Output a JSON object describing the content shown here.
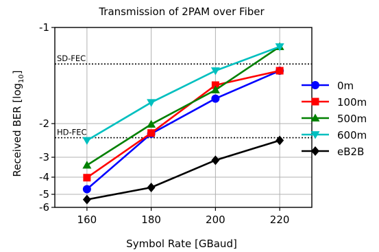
{
  "chart_data": {
    "type": "line",
    "title": "Transmission of 2PAM over Fiber",
    "xlabel": "Symbol Rate [GBaud]",
    "ylabel_main": "Received BER [log",
    "ylabel_sub": "10",
    "ylabel_close": "]",
    "x": [
      160,
      180,
      200,
      220
    ],
    "x_ticks": [
      160,
      180,
      200,
      220
    ],
    "x_tick_labels": [
      "160",
      "180",
      "200",
      "220"
    ],
    "xlim": [
      150,
      230
    ],
    "ylim": [
      -6,
      -1
    ],
    "y_ticks": [
      -1,
      -2,
      -3,
      -4,
      -5,
      -6
    ],
    "y_tick_labels": [
      "-1",
      "-2",
      "-3",
      "-4",
      "-5",
      "-6"
    ],
    "y_scale": "log-BER: ticks at -1..-6 compressed toward the bottom (axis value = log10(BER))",
    "grid": true,
    "legend_position": "outside-right",
    "reference_lines": [
      {
        "label": "SD-FEC",
        "y": -1.38
      },
      {
        "label": "HD-FEC",
        "y": -2.42
      }
    ],
    "series": [
      {
        "name": "0m",
        "color": "#0000ff",
        "marker": "circle",
        "values": [
          -4.7,
          -2.3,
          -1.74,
          -1.45
        ]
      },
      {
        "name": "100m",
        "color": "#ff0000",
        "marker": "square",
        "values": [
          -4.03,
          -2.28,
          -1.6,
          -1.45
        ]
      },
      {
        "name": "500m",
        "color": "#008000",
        "marker": "triangle-up",
        "values": [
          -3.4,
          -2.02,
          -1.65,
          -1.2
        ]
      },
      {
        "name": "600m",
        "color": "#00bfbf",
        "marker": "triangle-down",
        "values": [
          -2.5,
          -1.78,
          -1.45,
          -1.2
        ]
      },
      {
        "name": "eB2B",
        "color": "#000000",
        "marker": "diamond",
        "values": [
          -5.4,
          -4.6,
          -3.15,
          -2.5
        ]
      }
    ]
  }
}
